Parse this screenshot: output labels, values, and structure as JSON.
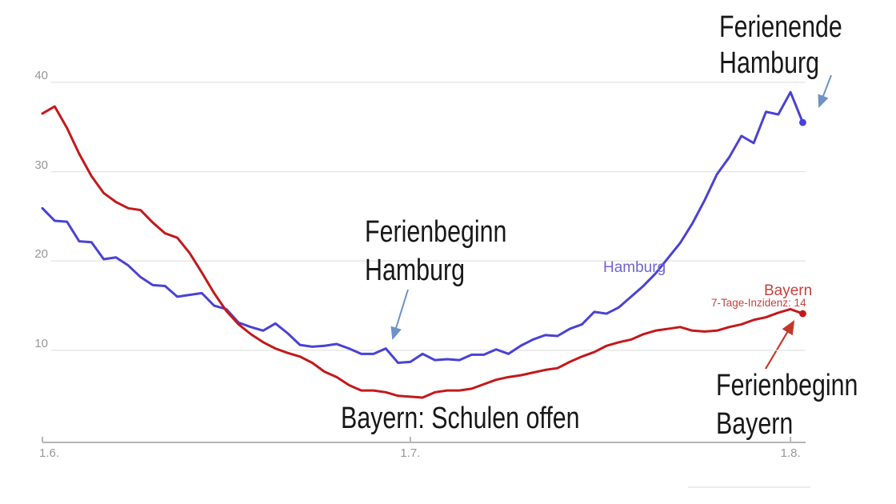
{
  "chart_data": {
    "type": "line",
    "title": "",
    "subtitle": "",
    "x_axis": {
      "start_date": "1.6.",
      "end_date": "2.8.",
      "interval": "daily",
      "ticks": [
        {
          "label": "1.6.",
          "day": 0,
          "align": "left"
        },
        {
          "label": "1.7.",
          "day": 30,
          "align": "center"
        },
        {
          "label": "1.8.",
          "day": 61,
          "align": "center"
        }
      ]
    },
    "y_axis": {
      "range": [
        0,
        40
      ],
      "grid": true,
      "ticks": [
        {
          "label": "40",
          "v": 40
        },
        {
          "label": "30",
          "v": 30
        },
        {
          "label": "20",
          "v": 20
        },
        {
          "label": "10",
          "v": 10
        }
      ]
    },
    "series": [
      {
        "name": "Hamburg",
        "label_color": "#7064d6",
        "stroke": "#4a42d4",
        "end_dot": true,
        "values": [
          25.9,
          24.5,
          24.4,
          22.2,
          22.1,
          20.2,
          20.4,
          19.5,
          18.2,
          17.3,
          17.2,
          16.0,
          16.2,
          16.4,
          15.0,
          14.6,
          13.1,
          12.6,
          12.2,
          13.0,
          11.9,
          10.6,
          10.4,
          10.5,
          10.7,
          10.2,
          9.6,
          9.6,
          10.2,
          8.6,
          8.7,
          9.6,
          8.9,
          9.0,
          8.9,
          9.5,
          9.5,
          10.1,
          9.6,
          10.5,
          11.2,
          11.7,
          11.6,
          12.4,
          12.9,
          14.3,
          14.1,
          14.8,
          16.0,
          17.2,
          18.6,
          20.3,
          22.0,
          24.2,
          26.8,
          29.7,
          31.6,
          34.0,
          33.2,
          36.7,
          36.4,
          38.9,
          35.5
        ]
      },
      {
        "name": "Bayern",
        "value_label": "7-Tage-Inzidenz: 14",
        "label_color": "#c4423e",
        "stroke": "#c3191c",
        "end_dot": true,
        "values": [
          36.5,
          37.3,
          34.9,
          32.0,
          29.5,
          27.6,
          26.6,
          25.9,
          25.7,
          24.3,
          23.1,
          22.6,
          20.9,
          18.7,
          16.4,
          14.4,
          12.9,
          11.8,
          10.9,
          10.2,
          9.7,
          9.3,
          8.6,
          7.6,
          7.0,
          6.1,
          5.5,
          5.5,
          5.3,
          4.9,
          4.8,
          4.7,
          5.3,
          5.5,
          5.5,
          5.7,
          6.2,
          6.7,
          7.0,
          7.2,
          7.5,
          7.8,
          8.0,
          8.7,
          9.3,
          9.8,
          10.5,
          10.9,
          11.2,
          11.8,
          12.2,
          12.4,
          12.6,
          12.2,
          12.1,
          12.2,
          12.6,
          12.9,
          13.4,
          13.7,
          14.2,
          14.6,
          14.1
        ]
      }
    ],
    "legend_position": "inline-labels"
  },
  "annotations": [
    {
      "id": "ferienende-hamburg",
      "lines": [
        "Ferienende",
        "Hamburg"
      ]
    },
    {
      "id": "ferienbeginn-hamburg",
      "lines": [
        "Ferienbeginn",
        "Hamburg"
      ]
    },
    {
      "id": "bayern-schulen-offen",
      "lines": [
        "Bayern: Schulen offen"
      ]
    },
    {
      "id": "ferienbeginn-bayern",
      "lines": [
        "Ferienbeginn",
        "Bayern"
      ]
    }
  ],
  "colors": {
    "hamburg_line": "#4a42d4",
    "bayern_line": "#c3191c",
    "hamburg_label": "#7064d6",
    "bayern_label": "#c4423e",
    "annotation_text": "#181818",
    "blue_arrow": "#6d92c6",
    "red_arrow": "#c5372b",
    "gridline": "#e4e4e4",
    "axis": "#b5b5b5",
    "axis_text": "#979797"
  }
}
